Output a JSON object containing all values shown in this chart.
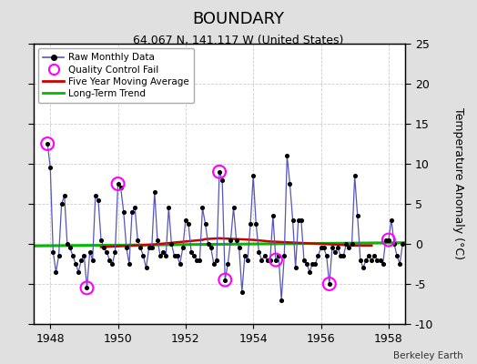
{
  "title": "BOUNDARY",
  "subtitle": "64.067 N, 141.117 W (United States)",
  "ylabel": "Temperature Anomaly (°C)",
  "credit": "Berkeley Earth",
  "ylim": [
    -10,
    25
  ],
  "yticks": [
    -10,
    -5,
    0,
    5,
    10,
    15,
    20,
    25
  ],
  "xlim": [
    1947.5,
    1958.5
  ],
  "xticks": [
    1948,
    1950,
    1952,
    1954,
    1956,
    1958
  ],
  "bg_color": "#e0e0e0",
  "plot_bg_color": "#ffffff",
  "raw_color": "#5555bb",
  "dot_color": "#000000",
  "ma_color": "#cc0000",
  "trend_color": "#00bb00",
  "qc_color": "#ff00ff",
  "raw_data": [
    [
      1947.917,
      12.5
    ],
    [
      1948.0,
      9.5
    ],
    [
      1948.083,
      -1.0
    ],
    [
      1948.167,
      -3.5
    ],
    [
      1948.25,
      -1.5
    ],
    [
      1948.333,
      5.0
    ],
    [
      1948.417,
      6.0
    ],
    [
      1948.5,
      0.0
    ],
    [
      1948.583,
      -0.5
    ],
    [
      1948.667,
      -1.5
    ],
    [
      1948.75,
      -2.5
    ],
    [
      1948.833,
      -3.5
    ],
    [
      1948.917,
      -2.0
    ],
    [
      1949.0,
      -1.5
    ],
    [
      1949.083,
      -5.5
    ],
    [
      1949.167,
      -1.0
    ],
    [
      1949.25,
      -2.0
    ],
    [
      1949.333,
      6.0
    ],
    [
      1949.417,
      5.5
    ],
    [
      1949.5,
      0.5
    ],
    [
      1949.583,
      -0.5
    ],
    [
      1949.667,
      -1.0
    ],
    [
      1949.75,
      -2.0
    ],
    [
      1949.833,
      -2.5
    ],
    [
      1949.917,
      -1.0
    ],
    [
      1950.0,
      7.5
    ],
    [
      1950.083,
      7.0
    ],
    [
      1950.167,
      4.0
    ],
    [
      1950.25,
      -0.5
    ],
    [
      1950.333,
      -2.5
    ],
    [
      1950.417,
      4.0
    ],
    [
      1950.5,
      4.5
    ],
    [
      1950.583,
      0.5
    ],
    [
      1950.667,
      -0.5
    ],
    [
      1950.75,
      -1.5
    ],
    [
      1950.833,
      -3.0
    ],
    [
      1950.917,
      -0.5
    ],
    [
      1951.0,
      -0.5
    ],
    [
      1951.083,
      6.5
    ],
    [
      1951.167,
      0.5
    ],
    [
      1951.25,
      -1.5
    ],
    [
      1951.333,
      -1.0
    ],
    [
      1951.417,
      -1.5
    ],
    [
      1951.5,
      4.5
    ],
    [
      1951.583,
      0.0
    ],
    [
      1951.667,
      -1.5
    ],
    [
      1951.75,
      -1.5
    ],
    [
      1951.833,
      -2.5
    ],
    [
      1951.917,
      -0.5
    ],
    [
      1952.0,
      3.0
    ],
    [
      1952.083,
      2.5
    ],
    [
      1952.167,
      -1.0
    ],
    [
      1952.25,
      -1.5
    ],
    [
      1952.333,
      -2.0
    ],
    [
      1952.417,
      -2.0
    ],
    [
      1952.5,
      4.5
    ],
    [
      1952.583,
      2.5
    ],
    [
      1952.667,
      0.0
    ],
    [
      1952.75,
      -0.5
    ],
    [
      1952.833,
      -2.5
    ],
    [
      1952.917,
      -2.0
    ],
    [
      1953.0,
      9.0
    ],
    [
      1953.083,
      8.0
    ],
    [
      1953.167,
      -4.5
    ],
    [
      1953.25,
      -2.5
    ],
    [
      1953.333,
      0.5
    ],
    [
      1953.417,
      4.5
    ],
    [
      1953.5,
      0.5
    ],
    [
      1953.583,
      -0.5
    ],
    [
      1953.667,
      -6.0
    ],
    [
      1953.75,
      -1.5
    ],
    [
      1953.833,
      -2.0
    ],
    [
      1953.917,
      2.5
    ],
    [
      1954.0,
      8.5
    ],
    [
      1954.083,
      2.5
    ],
    [
      1954.167,
      -1.0
    ],
    [
      1954.25,
      -2.0
    ],
    [
      1954.333,
      -1.5
    ],
    [
      1954.417,
      -2.0
    ],
    [
      1954.5,
      -2.0
    ],
    [
      1954.583,
      3.5
    ],
    [
      1954.667,
      -2.0
    ],
    [
      1954.75,
      -1.5
    ],
    [
      1954.833,
      -7.0
    ],
    [
      1954.917,
      -1.5
    ],
    [
      1955.0,
      11.0
    ],
    [
      1955.083,
      7.5
    ],
    [
      1955.167,
      3.0
    ],
    [
      1955.25,
      -3.0
    ],
    [
      1955.333,
      3.0
    ],
    [
      1955.417,
      3.0
    ],
    [
      1955.5,
      -2.0
    ],
    [
      1955.583,
      -2.5
    ],
    [
      1955.667,
      -3.5
    ],
    [
      1955.75,
      -2.5
    ],
    [
      1955.833,
      -2.5
    ],
    [
      1955.917,
      -1.5
    ],
    [
      1956.0,
      -0.5
    ],
    [
      1956.083,
      -0.5
    ],
    [
      1956.167,
      -1.5
    ],
    [
      1956.25,
      -5.0
    ],
    [
      1956.333,
      -0.5
    ],
    [
      1956.417,
      -1.0
    ],
    [
      1956.5,
      -0.5
    ],
    [
      1956.583,
      -1.5
    ],
    [
      1956.667,
      -1.5
    ],
    [
      1956.75,
      0.0
    ],
    [
      1956.833,
      -0.5
    ],
    [
      1956.917,
      0.0
    ],
    [
      1957.0,
      8.5
    ],
    [
      1957.083,
      3.5
    ],
    [
      1957.167,
      -2.0
    ],
    [
      1957.25,
      -3.0
    ],
    [
      1957.333,
      -2.0
    ],
    [
      1957.417,
      -1.5
    ],
    [
      1957.5,
      -2.0
    ],
    [
      1957.583,
      -1.5
    ],
    [
      1957.667,
      -2.0
    ],
    [
      1957.75,
      -2.0
    ],
    [
      1957.833,
      -2.5
    ],
    [
      1957.917,
      0.5
    ],
    [
      1958.0,
      0.5
    ],
    [
      1958.083,
      3.0
    ],
    [
      1958.167,
      0.0
    ],
    [
      1958.25,
      -1.5
    ],
    [
      1958.333,
      -2.5
    ],
    [
      1958.417,
      0.0
    ]
  ],
  "qc_fail": [
    [
      1947.917,
      12.5
    ],
    [
      1949.083,
      -5.5
    ],
    [
      1950.0,
      7.5
    ],
    [
      1953.0,
      9.0
    ],
    [
      1953.167,
      -4.5
    ],
    [
      1954.667,
      -2.0
    ],
    [
      1956.25,
      -5.0
    ],
    [
      1958.0,
      0.5
    ]
  ],
  "moving_avg": [
    [
      1949.5,
      -0.4
    ],
    [
      1950.0,
      -0.3
    ],
    [
      1950.5,
      -0.2
    ],
    [
      1951.0,
      -0.1
    ],
    [
      1951.5,
      0.1
    ],
    [
      1952.0,
      0.3
    ],
    [
      1952.5,
      0.5
    ],
    [
      1952.583,
      0.6
    ],
    [
      1953.0,
      0.7
    ],
    [
      1953.5,
      0.6
    ],
    [
      1954.0,
      0.5
    ],
    [
      1954.5,
      0.3
    ],
    [
      1955.0,
      0.2
    ],
    [
      1955.5,
      0.1
    ],
    [
      1956.0,
      0.0
    ],
    [
      1956.5,
      -0.1
    ],
    [
      1957.0,
      -0.2
    ],
    [
      1957.5,
      -0.2
    ]
  ],
  "trend_x": [
    1947.5,
    1958.5
  ],
  "trend_y": [
    -0.25,
    0.15
  ]
}
